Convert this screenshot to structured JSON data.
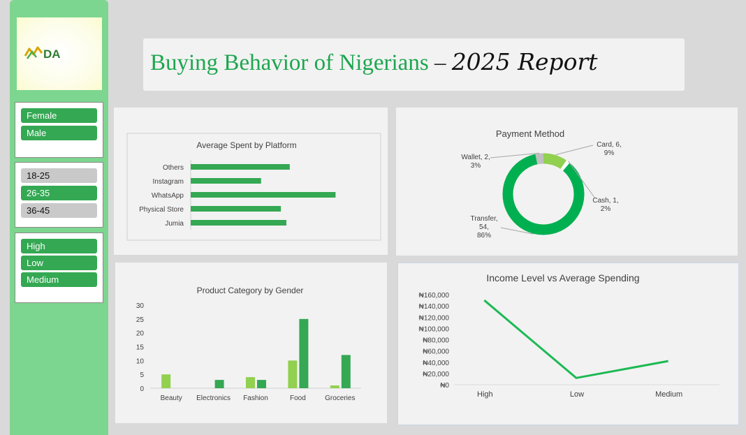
{
  "sidebar": {
    "logo_text": "DA",
    "gender_slicer": [
      {
        "label": "Female",
        "selected": true
      },
      {
        "label": "Male",
        "selected": true
      }
    ],
    "age_slicer": [
      {
        "label": "18-25",
        "selected": false
      },
      {
        "label": "26-35",
        "selected": true
      },
      {
        "label": "36-45",
        "selected": false
      }
    ],
    "income_slicer": [
      {
        "label": "High",
        "selected": true
      },
      {
        "label": "Low",
        "selected": true
      },
      {
        "label": "Medium",
        "selected": true
      }
    ]
  },
  "header": {
    "title": "Buying Behavior of Nigerians",
    "dash": "–",
    "year_report": "2025 Report"
  },
  "colors": {
    "primary": "#34a853",
    "light": "#92d050",
    "line": "#1db954",
    "sidebar": "#7dd68f"
  },
  "chart_data": [
    {
      "type": "bar",
      "orientation": "horizontal",
      "title": "Average Spent by Platform",
      "categories": [
        "Others",
        "Instagram",
        "WhatsApp",
        "Physical Store",
        "Jumia"
      ],
      "values": [
        145,
        103,
        212,
        132,
        140
      ],
      "xlim": [
        0,
        230
      ]
    },
    {
      "type": "pie",
      "style": "doughnut",
      "title": "Payment Method",
      "slices": [
        {
          "label": "Card",
          "value": 6,
          "pct": "9%",
          "color": "#92d050"
        },
        {
          "label": "Cash",
          "value": 1,
          "pct": "2%",
          "color": "#ffffff"
        },
        {
          "label": "Transfer",
          "value": 54,
          "pct": "86%",
          "color": "#00b050"
        },
        {
          "label": "Wallet",
          "value": 2,
          "pct": "3%",
          "color": "#bfbfbf"
        }
      ]
    },
    {
      "type": "bar",
      "title": "Product Category by Gender",
      "categories": [
        "Beauty",
        "Electronics",
        "Fashion",
        "Food",
        "Groceries"
      ],
      "series": [
        {
          "values": [
            5,
            0,
            4,
            10,
            1
          ],
          "color": "#92d050"
        },
        {
          "values": [
            0,
            3,
            3,
            25,
            12
          ],
          "color": "#34a853"
        }
      ],
      "ylim": [
        0,
        30
      ],
      "yticks": [
        0,
        5,
        10,
        15,
        20,
        25,
        30
      ]
    },
    {
      "type": "line",
      "title": "Income Level vs Average Spending",
      "categories": [
        "High",
        "Low",
        "Medium"
      ],
      "values": [
        150000,
        12000,
        42000
      ],
      "ylim": [
        0,
        160000
      ],
      "yticks": [
        "₦0",
        "₦20,000",
        "₦40,000",
        "₦60,000",
        "₦80,000",
        "₦100,000",
        "₦120,000",
        "₦140,000",
        "₦160,000"
      ]
    }
  ]
}
